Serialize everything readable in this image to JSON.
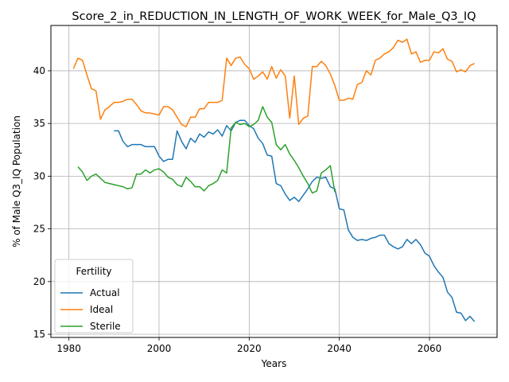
{
  "chart_data": {
    "type": "line",
    "title": "Score_2_in_REDUCTION_IN_LENGTH_OF_WORK_WEEK_for_Male_Q3_IQ",
    "xlabel": "Years",
    "ylabel": "% of Male Q3_IQ Population",
    "xlim": [
      1976,
      2075
    ],
    "ylim": [
      14.7,
      44.3
    ],
    "xticks": [
      1980,
      2000,
      2020,
      2040,
      2060
    ],
    "yticks": [
      15,
      20,
      25,
      30,
      35,
      40
    ],
    "grid": true,
    "legend": {
      "title": "Fertility",
      "position": "lower-left"
    },
    "series": [
      {
        "name": "Actual",
        "color": "#1f77b4",
        "x": [
          1990,
          1991,
          1992,
          1993,
          1994,
          1995,
          1996,
          1997,
          1998,
          1999,
          2000,
          2001,
          2002,
          2003,
          2004,
          2005,
          2006,
          2007,
          2008,
          2009,
          2010,
          2011,
          2012,
          2013,
          2014,
          2015,
          2016,
          2017,
          2018,
          2019,
          2020,
          2021,
          2022,
          2023,
          2024,
          2025,
          2026,
          2027,
          2028,
          2029,
          2030,
          2031,
          2032,
          2033,
          2034,
          2035,
          2036,
          2037,
          2038,
          2039,
          2040,
          2041,
          2042,
          2043,
          2044,
          2045,
          2046,
          2047,
          2048,
          2049,
          2050,
          2051,
          2052,
          2053,
          2054,
          2055,
          2056,
          2057,
          2058,
          2059,
          2060,
          2061,
          2062,
          2063,
          2064,
          2065,
          2066,
          2067,
          2068,
          2069,
          2070
        ],
        "values": [
          34.3,
          34.3,
          33.3,
          32.8,
          33.0,
          33.0,
          33.0,
          32.8,
          32.8,
          32.8,
          31.9,
          31.4,
          31.6,
          31.6,
          34.3,
          33.3,
          32.6,
          33.6,
          33.2,
          34.0,
          33.7,
          34.2,
          34.0,
          34.4,
          33.8,
          34.8,
          34.3,
          35.1,
          35.3,
          35.3,
          34.8,
          34.5,
          33.6,
          33.1,
          32.0,
          31.9,
          29.3,
          29.1,
          28.3,
          27.7,
          28.0,
          27.6,
          28.2,
          28.8,
          29.5,
          29.9,
          29.8,
          29.9,
          29.0,
          28.8,
          26.9,
          26.8,
          24.9,
          24.2,
          23.9,
          24.0,
          23.9,
          24.1,
          24.2,
          24.4,
          24.4,
          23.6,
          23.3,
          23.1,
          23.3,
          24.0,
          23.6,
          24.0,
          23.5,
          22.7,
          22.4,
          21.5,
          20.9,
          20.4,
          19.0,
          18.5,
          17.1,
          17.0,
          16.3,
          16.7,
          16.2
        ]
      },
      {
        "name": "Ideal",
        "color": "#ff7f0e",
        "x": [
          1981,
          1982,
          1983,
          1984,
          1985,
          1986,
          1987,
          1988,
          1989,
          1990,
          1991,
          1992,
          1993,
          1994,
          1995,
          1996,
          1997,
          1998,
          1999,
          2000,
          2001,
          2002,
          2003,
          2004,
          2005,
          2006,
          2007,
          2008,
          2009,
          2010,
          2011,
          2012,
          2013,
          2014,
          2015,
          2016,
          2017,
          2018,
          2019,
          2020,
          2021,
          2022,
          2023,
          2024,
          2025,
          2026,
          2027,
          2028,
          2029,
          2030,
          2031,
          2032,
          2033,
          2034,
          2035,
          2036,
          2037,
          2038,
          2039,
          2040,
          2041,
          2042,
          2043,
          2044,
          2045,
          2046,
          2047,
          2048,
          2049,
          2050,
          2051,
          2052,
          2053,
          2054,
          2055,
          2056,
          2057,
          2058,
          2059,
          2060,
          2061,
          2062,
          2063,
          2064,
          2065,
          2066,
          2067,
          2068,
          2069,
          2070
        ],
        "values": [
          40.2,
          41.2,
          41.0,
          39.6,
          38.3,
          38.1,
          35.4,
          36.3,
          36.6,
          37.0,
          37.0,
          37.1,
          37.3,
          37.3,
          36.8,
          36.2,
          36.0,
          36.0,
          35.9,
          35.8,
          36.6,
          36.6,
          36.3,
          35.6,
          34.9,
          34.7,
          35.6,
          35.6,
          36.4,
          36.4,
          37.0,
          37.0,
          37.0,
          37.2,
          41.2,
          40.5,
          41.2,
          41.3,
          40.6,
          40.2,
          39.2,
          39.5,
          39.9,
          39.2,
          40.4,
          39.3,
          40.1,
          39.5,
          35.5,
          39.5,
          34.9,
          35.5,
          35.7,
          40.4,
          40.4,
          40.9,
          40.5,
          39.7,
          38.6,
          37.2,
          37.2,
          37.4,
          37.3,
          38.7,
          38.9,
          40.0,
          39.6,
          41.0,
          41.2,
          41.6,
          41.8,
          42.2,
          42.9,
          42.7,
          43.0,
          41.6,
          41.8,
          40.8,
          41.0,
          41.0,
          41.8,
          41.7,
          42.1,
          41.1,
          40.9,
          39.9,
          40.1,
          39.9,
          40.5,
          40.7
        ]
      },
      {
        "name": "Sterile",
        "color": "#2ca02c",
        "x": [
          1982,
          1983,
          1984,
          1985,
          1986,
          1987,
          1988,
          1989,
          1990,
          1991,
          1992,
          1993,
          1994,
          1995,
          1996,
          1997,
          1998,
          1999,
          2000,
          2001,
          2002,
          2003,
          2004,
          2005,
          2006,
          2007,
          2008,
          2009,
          2010,
          2011,
          2012,
          2013,
          2014,
          2015,
          2016,
          2017,
          2018,
          2019,
          2020,
          2021,
          2022,
          2023,
          2024,
          2025,
          2026,
          2027,
          2028,
          2029,
          2030,
          2031,
          2032,
          2033,
          2034,
          2035,
          2036,
          2037,
          2038,
          2039
        ],
        "values": [
          30.9,
          30.4,
          29.6,
          30.0,
          30.2,
          29.8,
          29.4,
          29.3,
          29.2,
          29.1,
          29.0,
          28.8,
          28.9,
          30.2,
          30.2,
          30.6,
          30.3,
          30.6,
          30.7,
          30.4,
          29.9,
          29.7,
          29.2,
          29.0,
          29.9,
          29.5,
          29.0,
          29.0,
          28.6,
          29.1,
          29.3,
          29.6,
          30.6,
          30.3,
          34.6,
          35.1,
          34.9,
          35.0,
          34.7,
          34.9,
          35.3,
          36.6,
          35.6,
          35.1,
          33.0,
          32.5,
          33.0,
          32.1,
          31.5,
          30.8,
          30.0,
          29.3,
          28.4,
          28.6,
          30.3,
          30.6,
          31.0,
          28.5
        ]
      }
    ]
  }
}
